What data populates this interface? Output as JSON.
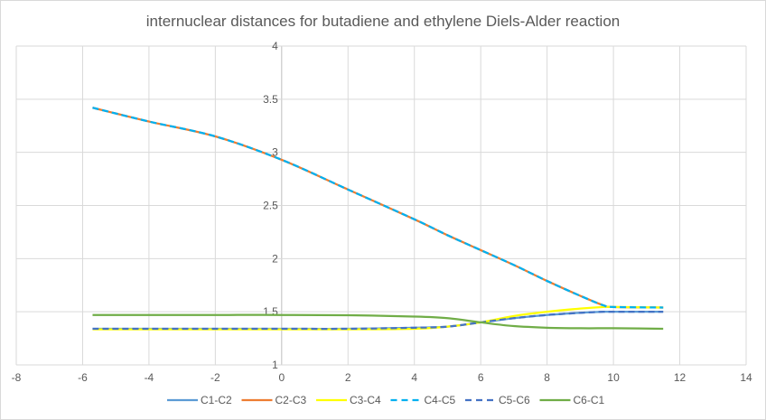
{
  "chart_data": {
    "type": "line",
    "title": "internuclear distances for butadiene and ethylene Diels-Alder reaction",
    "xlabel": "",
    "ylabel": "",
    "xlim": [
      -8,
      14
    ],
    "ylim": [
      1,
      4
    ],
    "xticks": [
      -8,
      -6,
      -4,
      -2,
      0,
      2,
      4,
      6,
      8,
      10,
      12,
      14
    ],
    "yticks": [
      1,
      1.5,
      2,
      2.5,
      3,
      3.5,
      4
    ],
    "grid": true,
    "legend_position": "bottom",
    "x": [
      -5.7,
      -4,
      -2,
      0,
      2,
      4,
      5,
      6,
      7,
      8,
      9,
      9.7,
      10,
      11.5
    ],
    "series": [
      {
        "name": "C1-C2",
        "color": "#5B9BD5",
        "dash": false,
        "values": [
          1.34,
          1.34,
          1.34,
          1.34,
          1.34,
          1.35,
          1.36,
          1.4,
          1.44,
          1.47,
          1.49,
          1.5,
          1.5,
          1.5
        ]
      },
      {
        "name": "C2-C3",
        "color": "#ED7D31",
        "dash": false,
        "values": [
          3.42,
          3.29,
          3.15,
          2.93,
          2.65,
          2.37,
          2.22,
          2.08,
          1.94,
          1.79,
          1.65,
          1.56,
          1.545,
          1.54
        ]
      },
      {
        "name": "C3-C4",
        "color": "#FFFF00",
        "dash": false,
        "values": [
          1.335,
          1.335,
          1.335,
          1.335,
          1.335,
          1.34,
          1.36,
          1.4,
          1.46,
          1.5,
          1.53,
          1.545,
          1.545,
          1.54
        ]
      },
      {
        "name": "C4-C5",
        "color": "#00B0F0",
        "dash": true,
        "values": [
          3.42,
          3.29,
          3.15,
          2.93,
          2.65,
          2.37,
          2.22,
          2.08,
          1.94,
          1.79,
          1.65,
          1.56,
          1.545,
          1.54
        ]
      },
      {
        "name": "C5-C6",
        "color": "#4472C4",
        "dash": true,
        "values": [
          1.34,
          1.34,
          1.34,
          1.34,
          1.34,
          1.35,
          1.36,
          1.4,
          1.44,
          1.47,
          1.49,
          1.5,
          1.5,
          1.5
        ]
      },
      {
        "name": "C6-C1",
        "color": "#70AD47",
        "dash": false,
        "values": [
          1.47,
          1.47,
          1.47,
          1.47,
          1.467,
          1.455,
          1.44,
          1.4,
          1.365,
          1.35,
          1.345,
          1.345,
          1.345,
          1.34
        ]
      }
    ]
  }
}
